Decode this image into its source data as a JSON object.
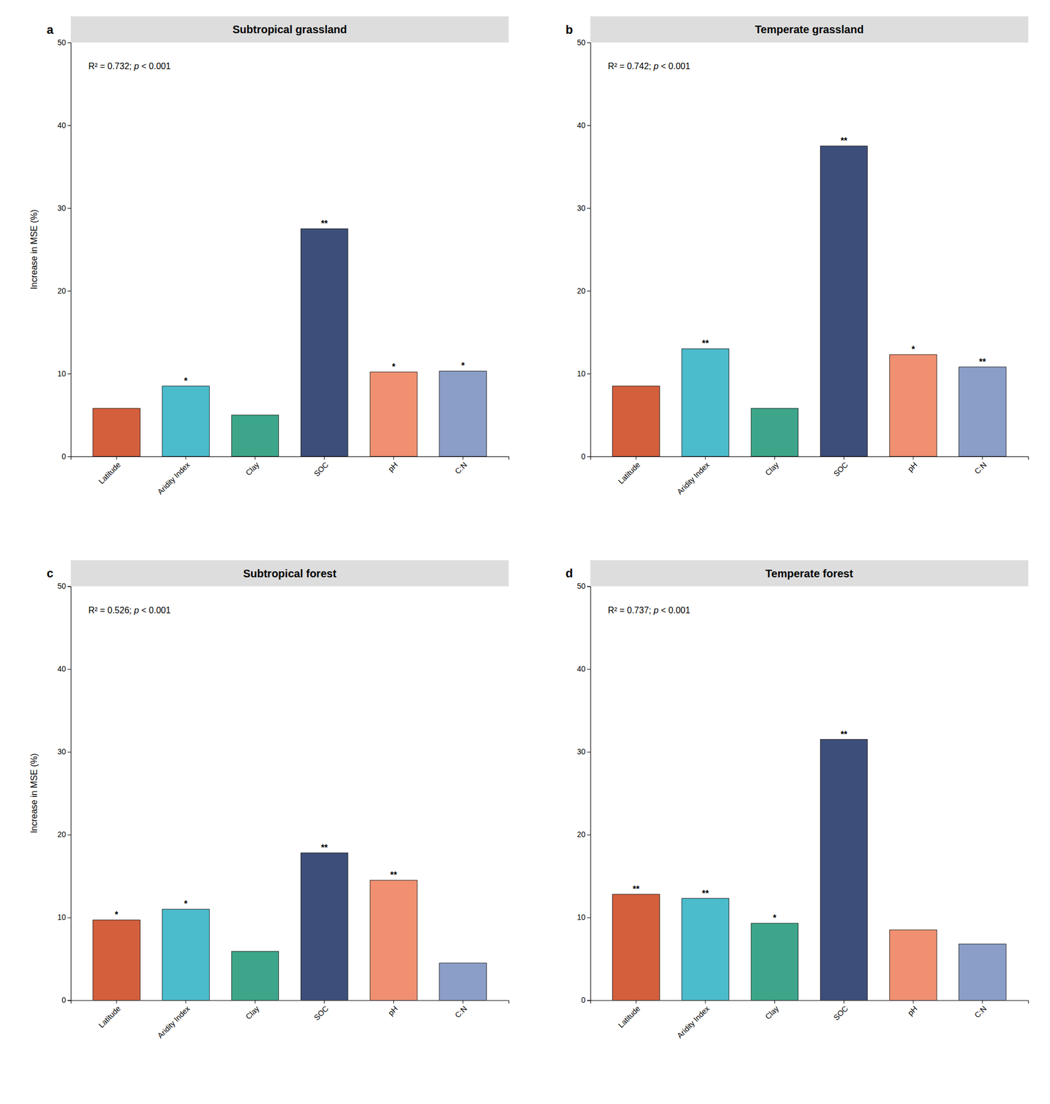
{
  "chart_data": [
    {
      "type": "bar",
      "title": "Subtropical grassland",
      "categories": [
        "Latitude",
        "Aridity Index",
        "Clay",
        "SOC",
        "pH",
        "C:N"
      ],
      "values": [
        5.8,
        8.5,
        5.0,
        27.5,
        10.2,
        10.3
      ],
      "colors": [
        "#D45F3C",
        "#4BBCCC",
        "#3DA68A",
        "#3D4E7A",
        "#F09070",
        "#8B9EC8"
      ],
      "ylabel": "Increase in MSE (%)",
      "ylim": [
        0,
        50
      ],
      "yticks": [
        0,
        10,
        20,
        30,
        40,
        50
      ],
      "grid": false,
      "annotations": [
        {
          "text": "a"
        },
        {
          "text": "R² = 0.732; p < 0.001"
        },
        {
          "text": "*",
          "x": "Aridity Index"
        },
        {
          "text": "**",
          "x": "SOC"
        },
        {
          "text": "*",
          "x": "pH"
        },
        {
          "text": "*",
          "x": "C:N"
        }
      ]
    },
    {
      "type": "bar",
      "title": "Temperate grassland",
      "categories": [
        "Latitude",
        "Aridity Index",
        "Clay",
        "SOC",
        "pH",
        "C:N"
      ],
      "values": [
        8.5,
        13.0,
        5.8,
        37.5,
        12.3,
        10.8
      ],
      "colors": [
        "#D45F3C",
        "#4BBCCC",
        "#3DA68A",
        "#3D4E7A",
        "#F09070",
        "#8B9EC8"
      ],
      "ylim": [
        0,
        50
      ],
      "yticks": [
        0,
        10,
        20,
        30,
        40,
        50
      ],
      "grid": false,
      "annotations": [
        {
          "text": "b"
        },
        {
          "text": "R² = 0.742; p < 0.001"
        },
        {
          "text": "**",
          "x": "Aridity Index"
        },
        {
          "text": "**",
          "x": "SOC"
        },
        {
          "text": "*",
          "x": "pH"
        },
        {
          "text": "**",
          "x": "C:N"
        }
      ]
    },
    {
      "type": "bar",
      "title": "Subtropical forest",
      "categories": [
        "Latitude",
        "Aridity Index",
        "Clay",
        "SOC",
        "pH",
        "C:N"
      ],
      "values": [
        9.7,
        11.0,
        5.9,
        17.8,
        14.5,
        4.5
      ],
      "colors": [
        "#D45F3C",
        "#4BBCCC",
        "#3DA68A",
        "#3D4E7A",
        "#F09070",
        "#8B9EC8"
      ],
      "ylabel": "Increase in MSE (%)",
      "ylim": [
        0,
        50
      ],
      "yticks": [
        0,
        10,
        20,
        30,
        40,
        50
      ],
      "grid": false,
      "annotations": [
        {
          "text": "c"
        },
        {
          "text": "R² = 0.526; p < 0.001"
        },
        {
          "text": "*",
          "x": "Latitude"
        },
        {
          "text": "*",
          "x": "Aridity Index"
        },
        {
          "text": "**",
          "x": "SOC"
        },
        {
          "text": "**",
          "x": "pH"
        }
      ]
    },
    {
      "type": "bar",
      "title": "Temperate forest",
      "categories": [
        "Latitude",
        "Aridity Index",
        "Clay",
        "SOC",
        "pH",
        "C:N"
      ],
      "values": [
        12.8,
        12.3,
        9.3,
        31.5,
        8.5,
        6.8
      ],
      "colors": [
        "#D45F3C",
        "#4BBCCC",
        "#3DA68A",
        "#3D4E7A",
        "#F09070",
        "#8B9EC8"
      ],
      "ylim": [
        0,
        50
      ],
      "yticks": [
        0,
        10,
        20,
        30,
        40,
        50
      ],
      "grid": false,
      "annotations": [
        {
          "text": "d"
        },
        {
          "text": "R² = 0.737; p < 0.001"
        },
        {
          "text": "**",
          "x": "Latitude"
        },
        {
          "text": "**",
          "x": "Aridity Index"
        },
        {
          "text": "*",
          "x": "Clay"
        },
        {
          "text": "**",
          "x": "SOC"
        }
      ]
    }
  ]
}
